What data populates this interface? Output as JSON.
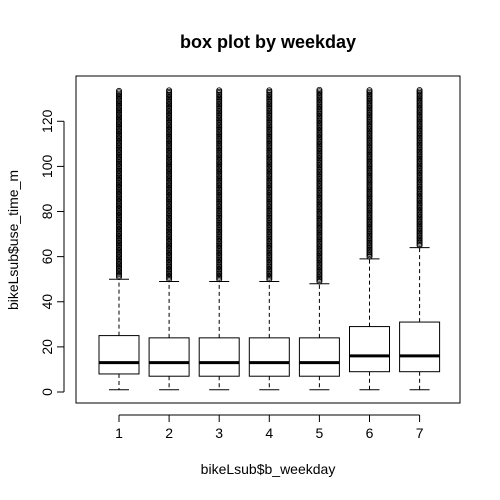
{
  "chart_data": {
    "type": "box",
    "title": "box plot by weekday",
    "xlabel": "bikeLsub$b_weekday",
    "ylabel": "bikeLsub$use_time_m",
    "categories": [
      "1",
      "2",
      "3",
      "4",
      "5",
      "6",
      "7"
    ],
    "ylim": [
      0,
      134
    ],
    "yticks": [
      "0",
      "20",
      "40",
      "60",
      "80",
      "100",
      "120"
    ],
    "boxes": [
      {
        "category": "1",
        "min": 1,
        "q1": 8,
        "median": 13,
        "q3": 25,
        "upper_whisker": 50,
        "outliers_from": 51,
        "outliers_to": 134
      },
      {
        "category": "2",
        "min": 1,
        "q1": 7,
        "median": 13,
        "q3": 24,
        "upper_whisker": 49,
        "outliers_from": 50,
        "outliers_to": 134
      },
      {
        "category": "3",
        "min": 1,
        "q1": 7,
        "median": 13,
        "q3": 24,
        "upper_whisker": 49,
        "outliers_from": 50,
        "outliers_to": 134
      },
      {
        "category": "4",
        "min": 1,
        "q1": 7,
        "median": 13,
        "q3": 24,
        "upper_whisker": 49,
        "outliers_from": 50,
        "outliers_to": 134
      },
      {
        "category": "5",
        "min": 1,
        "q1": 7,
        "median": 13,
        "q3": 24,
        "upper_whisker": 48,
        "outliers_from": 49,
        "outliers_to": 134
      },
      {
        "category": "6",
        "min": 1,
        "q1": 9,
        "median": 16,
        "q3": 29,
        "upper_whisker": 59,
        "outliers_from": 60,
        "outliers_to": 134
      },
      {
        "category": "7",
        "min": 1,
        "q1": 9,
        "median": 16,
        "q3": 31,
        "upper_whisker": 64,
        "outliers_from": 65,
        "outliers_to": 134
      }
    ],
    "grid": false,
    "legend": "none"
  }
}
